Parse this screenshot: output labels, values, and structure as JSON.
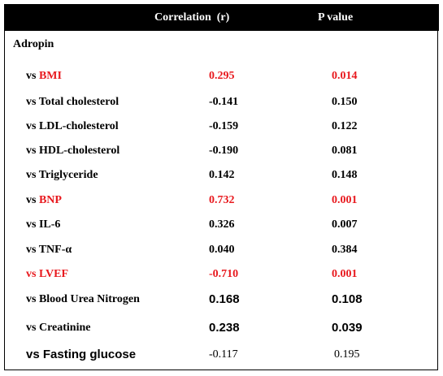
{
  "header": {
    "columns": [
      "Correlation  (r)",
      "P value"
    ]
  },
  "table": {
    "section": "Adropin",
    "rows": [
      {
        "vs": "vs",
        "name": "BMI",
        "r": "0.295",
        "p": "0.014",
        "color": "#e8191e",
        "vs_color": "#000000",
        "label_font": "serif",
        "value_font": "serif"
      },
      {
        "vs": "vs",
        "name": "Total cholesterol",
        "r": "-0.141",
        "p": "0.150",
        "color": "#000000",
        "vs_color": "#000000",
        "label_font": "serif",
        "value_font": "serif"
      },
      {
        "vs": "vs",
        "name": "LDL-cholesterol",
        "r": "-0.159",
        "p": "0.122",
        "color": "#000000",
        "vs_color": "#000000",
        "label_font": "serif",
        "value_font": "serif"
      },
      {
        "vs": "vs",
        "name": "HDL-cholesterol",
        "r": "-0.190",
        "p": "0.081",
        "color": "#000000",
        "vs_color": "#000000",
        "label_font": "serif",
        "value_font": "serif"
      },
      {
        "vs": "vs",
        "name": "Triglyceride",
        "r": "0.142",
        "p": "0.148",
        "color": "#000000",
        "vs_color": "#000000",
        "label_font": "serif",
        "value_font": "serif"
      },
      {
        "vs": "vs",
        "name": "BNP",
        "r": "0.732",
        "p": "0.001",
        "color": "#e8191e",
        "vs_color": "#000000",
        "label_font": "serif",
        "value_font": "serif"
      },
      {
        "vs": "vs",
        "name": "IL-6",
        "r": "0.326",
        "p": "0.007",
        "color": "#000000",
        "vs_color": "#000000",
        "label_font": "serif",
        "value_font": "serif"
      },
      {
        "vs": "vs",
        "name": "TNF-α",
        "r": "0.040",
        "p": "0.384",
        "color": "#000000",
        "vs_color": "#000000",
        "label_font": "serif",
        "value_font": "serif"
      },
      {
        "vs": "vs",
        "name": "LVEF",
        "r": "-0.710",
        "p": "0.001",
        "color": "#e8191e",
        "vs_color": "#e8191e",
        "label_font": "serif",
        "value_font": "serif"
      },
      {
        "vs": "vs",
        "name": "Blood Urea Nitrogen",
        "r": "0.168",
        "p": "0.108",
        "color": "#000000",
        "vs_color": "#000000",
        "label_font": "serif",
        "value_font": "sans"
      },
      {
        "vs": "vs",
        "name": "Creatinine",
        "r": "0.238",
        "p": "0.039",
        "color": "#000000",
        "vs_color": "#000000",
        "label_font": "serif",
        "value_font": "sans"
      },
      {
        "vs": "vs",
        "name": "Fasting glucose",
        "r": "-0.117",
        "p": "0.195",
        "color": "#000000",
        "vs_color": "#000000",
        "label_font": "sans",
        "value_font": "serif-normal"
      }
    ]
  }
}
